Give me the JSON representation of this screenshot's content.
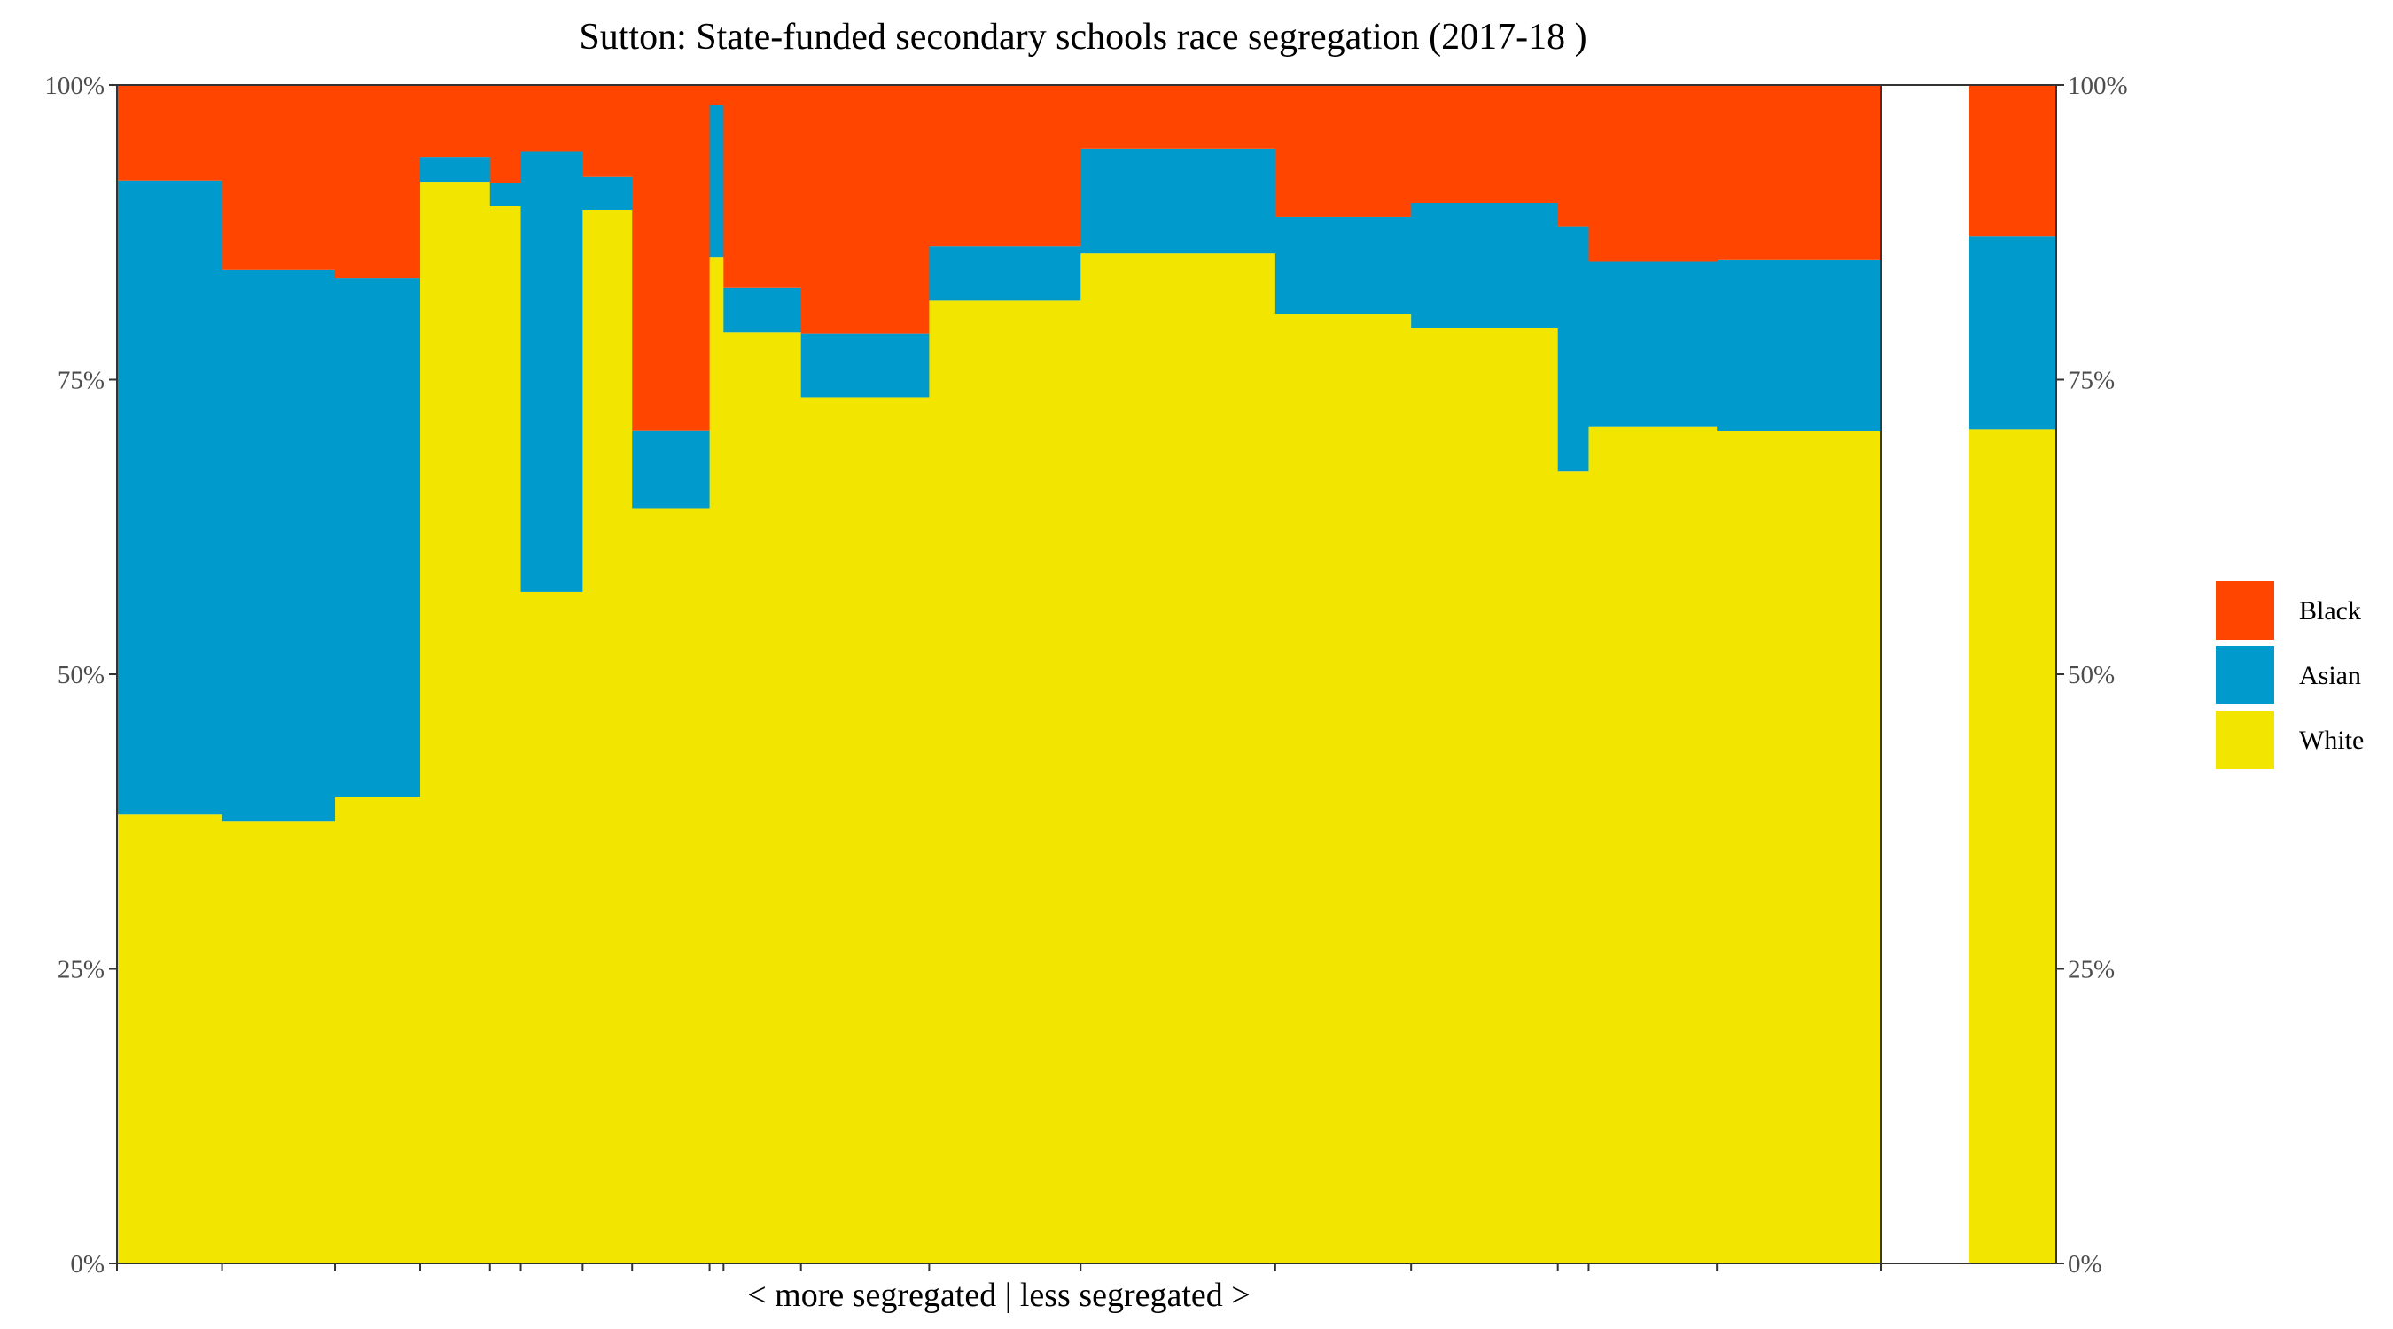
{
  "chart_data": {
    "type": "bar",
    "subtype": "stacked-variable-width (mosaic)",
    "title": "Sutton: State-funded secondary schools race segregation (2017-18 )",
    "xlabel": "< more segregated | less segregated >",
    "ylabel": "",
    "ylim": [
      0,
      100
    ],
    "y_ticks": [
      "0%",
      "25%",
      "50%",
      "75%",
      "100%"
    ],
    "grid": false,
    "legend_position": "right",
    "legend": [
      {
        "name": "Black",
        "color": "#FF4500"
      },
      {
        "name": "Asian",
        "color": "#009ACD"
      },
      {
        "name": "White",
        "color": "#F2E600"
      }
    ],
    "stack_order": [
      "White",
      "Asian",
      "Black"
    ],
    "schools": [
      {
        "share": 3.99,
        "White": 38.1,
        "Asian": 53.8,
        "Black": 8.1
      },
      {
        "share": 4.29,
        "White": 37.5,
        "Asian": 46.8,
        "Black": 15.7
      },
      {
        "share": 3.23,
        "White": 39.6,
        "Asian": 44.0,
        "Black": 16.4
      },
      {
        "share": 2.65,
        "White": 91.8,
        "Asian": 2.1,
        "Black": 6.1
      },
      {
        "share": 1.17,
        "White": 89.7,
        "Asian": 2.0,
        "Black": 8.3
      },
      {
        "share": 2.35,
        "White": 57.0,
        "Asian": 37.4,
        "Black": 5.6
      },
      {
        "share": 1.88,
        "White": 89.4,
        "Asian": 2.8,
        "Black": 7.8
      },
      {
        "share": 2.94,
        "White": 64.1,
        "Asian": 6.6,
        "Black": 29.3
      },
      {
        "share": 0.53,
        "White": 85.4,
        "Asian": 12.9,
        "Black": 1.7
      },
      {
        "share": 2.94,
        "White": 79.0,
        "Asian": 3.8,
        "Black": 17.2
      },
      {
        "share": 4.87,
        "White": 73.5,
        "Asian": 5.4,
        "Black": 21.1
      },
      {
        "share": 5.75,
        "White": 81.7,
        "Asian": 4.6,
        "Black": 13.7
      },
      {
        "share": 7.39,
        "White": 85.7,
        "Asian": 8.9,
        "Black": 5.4
      },
      {
        "share": 5.16,
        "White": 80.6,
        "Asian": 8.2,
        "Black": 11.2
      },
      {
        "share": 5.57,
        "White": 79.4,
        "Asian": 10.6,
        "Black": 10.0
      },
      {
        "share": 1.17,
        "White": 67.2,
        "Asian": 20.8,
        "Black": 12.0
      },
      {
        "share": 4.87,
        "White": 71.0,
        "Asian": 14.0,
        "Black": 15.0
      },
      {
        "share": 6.22,
        "White": 70.6,
        "Asian": 14.6,
        "Black": 14.8
      }
    ],
    "overall": {
      "White": 70.8,
      "Asian": 16.4,
      "Black": 12.8
    }
  }
}
